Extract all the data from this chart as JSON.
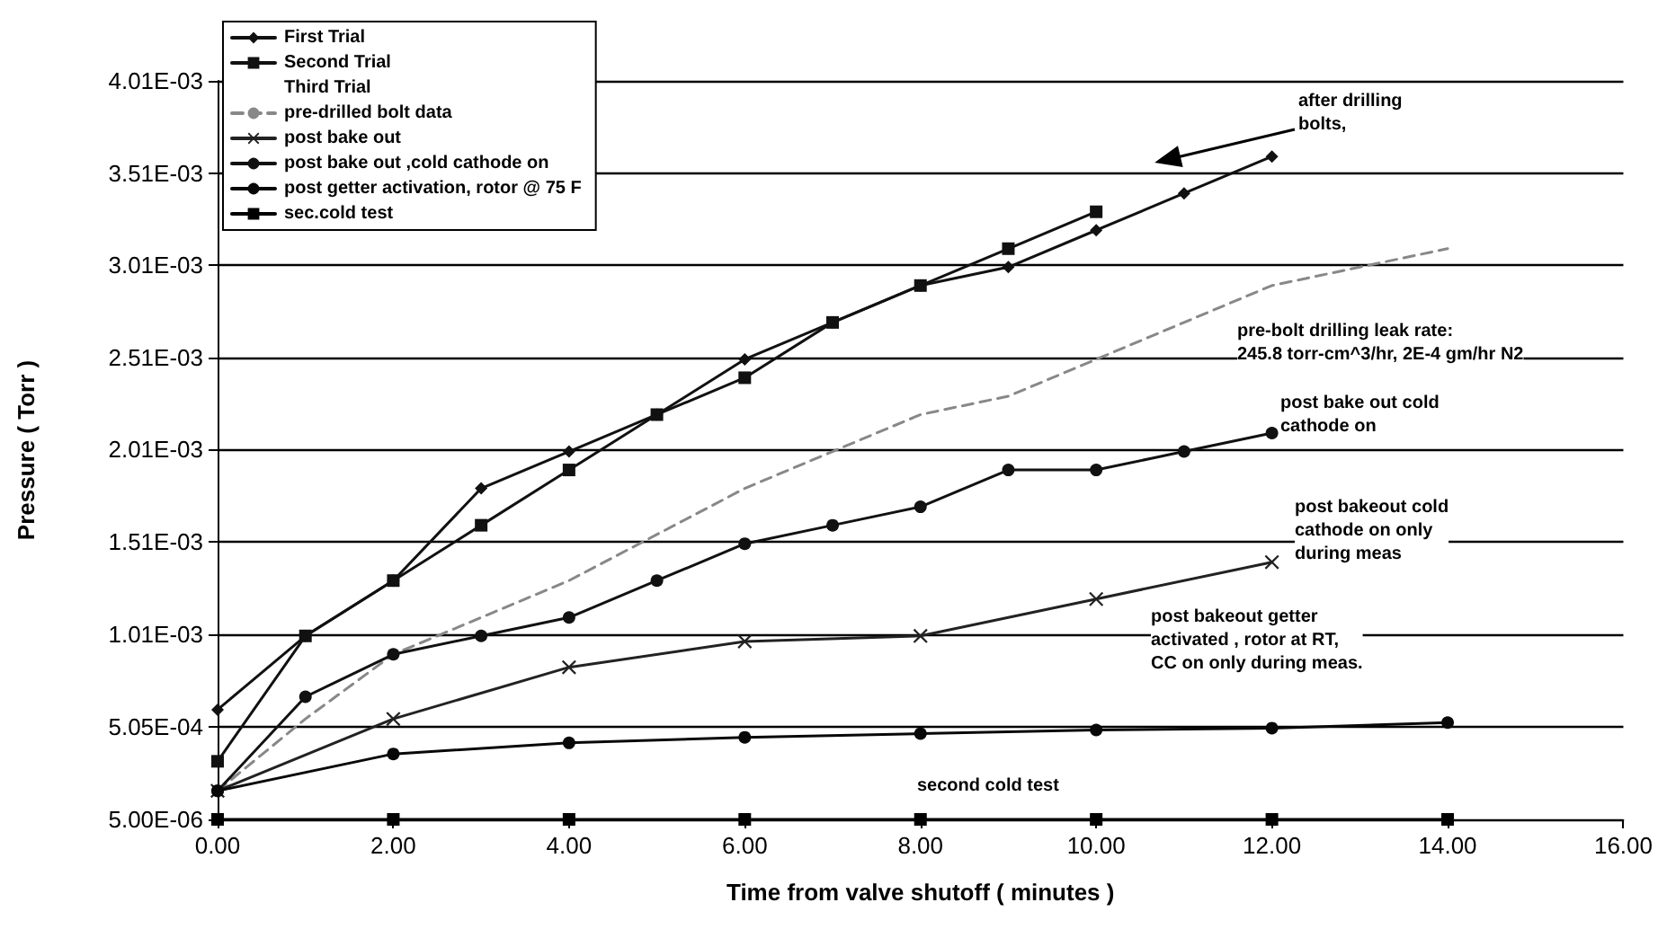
{
  "chart_data": {
    "type": "line",
    "xlabel": "Time from valve shutoff ( minutes )",
    "ylabel": "Pressure ( Torr )",
    "xlim": [
      0,
      16
    ],
    "xticks": [
      {
        "value": 0,
        "label": "0.00"
      },
      {
        "value": 2,
        "label": "2.00"
      },
      {
        "value": 4,
        "label": "4.00"
      },
      {
        "value": 6,
        "label": "6.00"
      },
      {
        "value": 8,
        "label": "8.00"
      },
      {
        "value": 10,
        "label": "10.00"
      },
      {
        "value": 12,
        "label": "12.00"
      },
      {
        "value": 14,
        "label": "14.00"
      },
      {
        "value": 16,
        "label": "16.00"
      }
    ],
    "ylim": [
      5e-06,
      0.00401
    ],
    "yticks": [
      {
        "value": 5e-06,
        "label": "5.00E-06"
      },
      {
        "value": 0.000505,
        "label": "5.05E-04"
      },
      {
        "value": 0.00101,
        "label": "1.01E-03"
      },
      {
        "value": 0.00151,
        "label": "1.51E-03"
      },
      {
        "value": 0.00201,
        "label": "2.01E-03"
      },
      {
        "value": 0.00251,
        "label": "2.51E-03"
      },
      {
        "value": 0.00301,
        "label": "3.01E-03"
      },
      {
        "value": 0.00351,
        "label": "3.51E-03"
      },
      {
        "value": 0.00401,
        "label": "4.01E-03"
      }
    ],
    "grid": "y",
    "legend": "top left",
    "series": [
      {
        "name": "First Trial",
        "color": "#111111",
        "marker": "diamond",
        "line_style": "solid",
        "x": [
          0,
          1,
          2,
          3,
          4,
          5,
          6,
          7,
          8,
          9,
          10,
          11,
          12
        ],
        "values": [
          0.0006,
          0.001,
          0.0013,
          0.0018,
          0.002,
          0.0022,
          0.0025,
          0.0027,
          0.0029,
          0.003,
          0.0032,
          0.0034,
          0.0036
        ]
      },
      {
        "name": "Second Trial",
        "color": "#111111",
        "marker": "square",
        "line_style": "solid",
        "x": [
          0,
          1,
          2,
          3,
          4,
          5,
          6,
          7,
          8,
          9,
          10
        ],
        "values": [
          0.00032,
          0.001,
          0.0013,
          0.0016,
          0.0019,
          0.0022,
          0.0024,
          0.0027,
          0.0029,
          0.0031,
          0.0033
        ]
      },
      {
        "name": "Third Trial",
        "marker": "none"
      },
      {
        "name": "pre-drilled bolt data",
        "color": "#888888",
        "marker": "none",
        "line_style": "dashed",
        "x": [
          0,
          1,
          2,
          3,
          4,
          5,
          6,
          7,
          8,
          9,
          10,
          11,
          12,
          13,
          14
        ],
        "values": [
          0.00016,
          0.00055,
          0.0009,
          0.0011,
          0.0013,
          0.00155,
          0.0018,
          0.002,
          0.0022,
          0.0023,
          0.0025,
          0.0027,
          0.0029,
          0.003,
          0.0031
        ]
      },
      {
        "name": "post bake out",
        "color": "#222222",
        "marker": "cross",
        "line_style": "solid",
        "x": [
          0,
          2,
          4,
          6,
          8,
          10,
          12
        ],
        "values": [
          0.00016,
          0.00055,
          0.00083,
          0.00097,
          0.001,
          0.0012,
          0.0014
        ]
      },
      {
        "name": "post bake out ,cold cathode on",
        "color": "#111111",
        "marker": "circle",
        "line_style": "solid",
        "x": [
          0,
          1,
          2,
          3,
          4,
          5,
          6,
          7,
          8,
          9,
          10,
          11,
          12
        ],
        "values": [
          0.00016,
          0.00067,
          0.0009,
          0.001,
          0.0011,
          0.0013,
          0.0015,
          0.0016,
          0.0017,
          0.0019,
          0.0019,
          0.002,
          0.0021
        ]
      },
      {
        "name": "post getter activation, rotor @ 75 F",
        "color": "#080808",
        "marker": "circle",
        "line_style": "solid",
        "x": [
          0,
          2,
          4,
          6,
          8,
          10,
          12,
          14
        ],
        "values": [
          0.00016,
          0.00036,
          0.00042,
          0.00045,
          0.00047,
          0.00049,
          0.0005,
          0.00053
        ]
      },
      {
        "name": "sec.cold test",
        "color": "#000000",
        "marker": "square",
        "line_style": "solid",
        "x": [
          0,
          2,
          4,
          6,
          8,
          10,
          12,
          14
        ],
        "values": [
          5e-06,
          5e-06,
          5e-06,
          5e-06,
          5e-06,
          5e-06,
          5e-06,
          5e-06
        ]
      }
    ],
    "annotations": [
      "after drilling\nbolts,",
      "pre-bolt drilling leak rate:\n245.8 torr-cm^3/hr, 2E-4 gm/hr N2",
      "post bake out cold\ncathode on",
      "post bakeout cold\ncathode on only\nduring meas",
      "post bakeout getter\nactivated , rotor at RT,\nCC on only during meas.",
      "second cold test"
    ]
  }
}
